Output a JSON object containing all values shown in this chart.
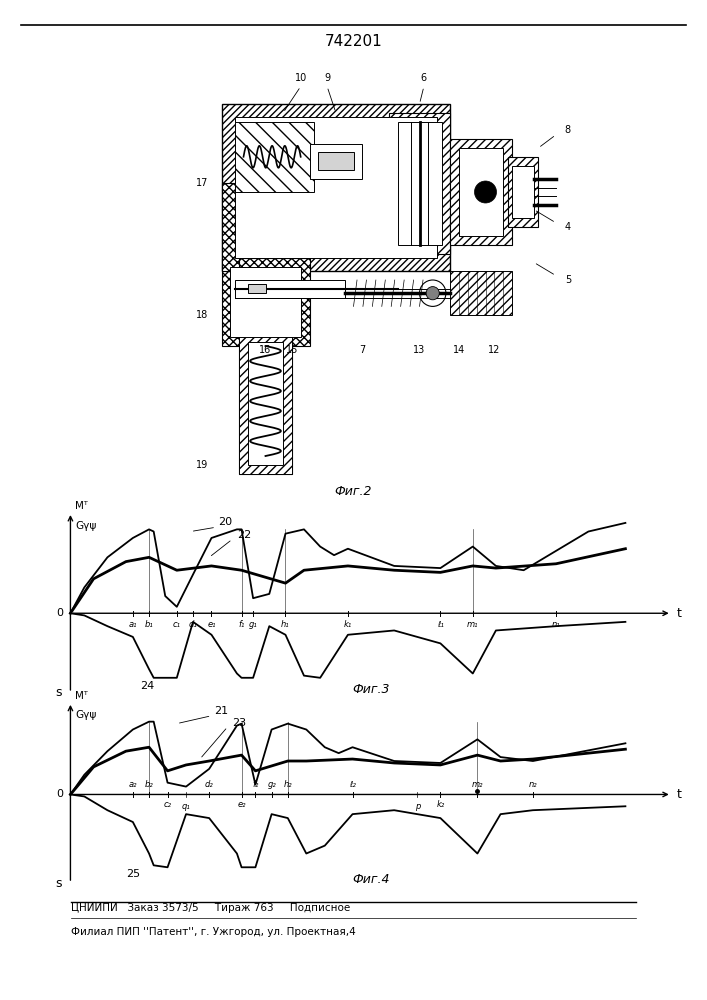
{
  "title": "742201",
  "footer_line1": "ЦНИИПИ   Заказ 3573/5     Тираж 763     Подписное",
  "footer_line2": "Филиал ПИП ''Патент'', г. Ужгород, ул. Проектная,4",
  "fig2_label": "Фиг.2",
  "fig3_label": "Фиг.3",
  "fig4_label": "Фиг.4",
  "fig3_ylabel1": "Mᵀ",
  "fig3_ylabel2": "Gγψ",
  "fig3_xlabel": "t",
  "fig3_slabel": "s",
  "fig4_ylabel1": "Mᵀ",
  "fig4_ylabel2": "Gγψ",
  "fig4_xlabel": "t",
  "fig4_slabel": "s",
  "fig3_curve20": "20",
  "fig3_curve22": "22",
  "fig3_curve24": "24",
  "fig4_curve21": "21",
  "fig4_curve23": "23",
  "fig4_curve25": "25"
}
